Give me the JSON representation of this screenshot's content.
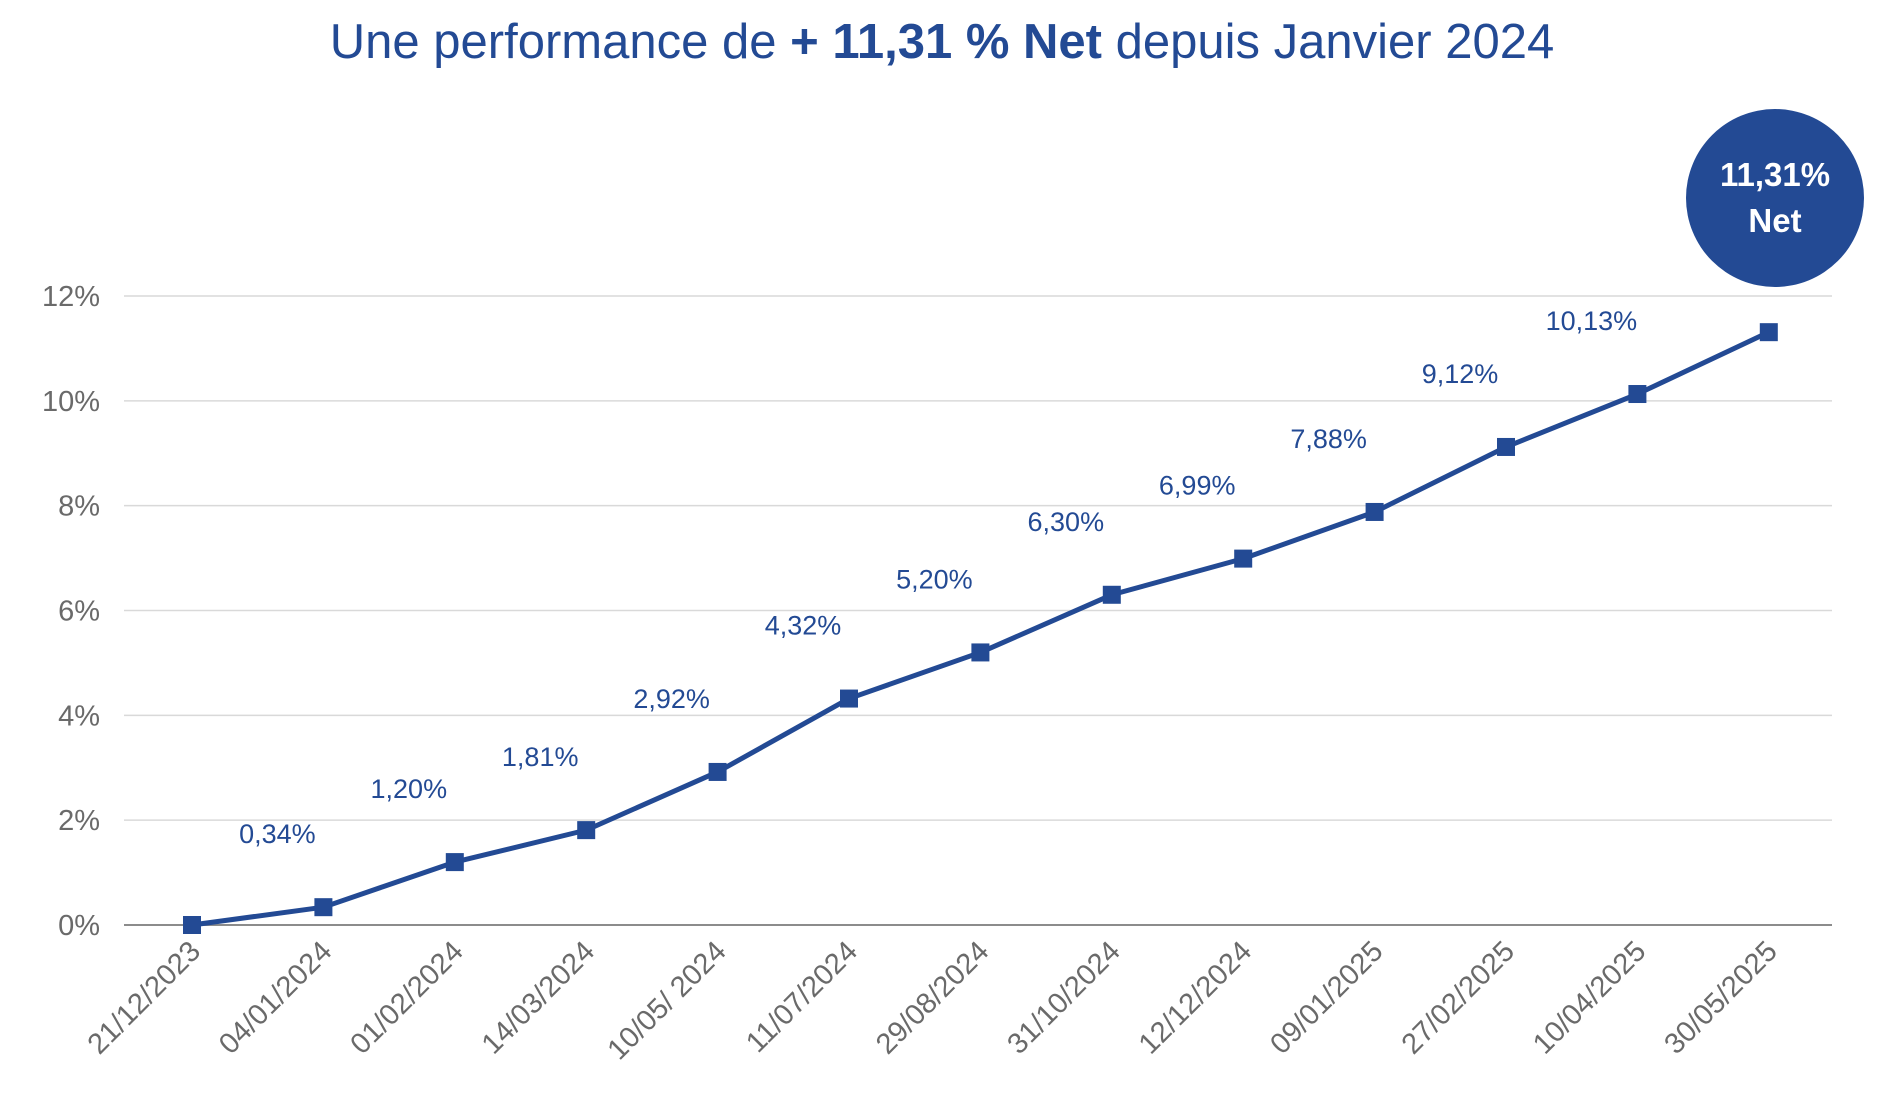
{
  "title": {
    "prefix": "Une performance de ",
    "highlight": "+ 11,31 % Net",
    "suffix": " depuis Janvier 2024"
  },
  "badge": {
    "line1": "11,31%",
    "line2": "Net"
  },
  "colors": {
    "series": "#234a94",
    "grid": "#d9d9d9",
    "axis": "#8c8c8c",
    "tick_text": "#6a6a6a"
  },
  "chart_data": {
    "type": "line",
    "title": "Une performance de + 11,31 % Net depuis Janvier 2024",
    "xlabel": "",
    "ylabel": "",
    "ylim": [
      0,
      12
    ],
    "grid": true,
    "y_ticks": [
      {
        "value": 0,
        "label": "0%"
      },
      {
        "value": 2,
        "label": "2%"
      },
      {
        "value": 4,
        "label": "4%"
      },
      {
        "value": 6,
        "label": "6%"
      },
      {
        "value": 8,
        "label": "8%"
      },
      {
        "value": 10,
        "label": "10%"
      },
      {
        "value": 12,
        "label": "12%"
      }
    ],
    "categories": [
      "21/12/2023",
      "04/01/2024",
      "01/02/2024",
      "14/03/2024",
      "10/05/ 2024",
      "11/07/2024",
      "29/08/2024",
      "31/10/2024",
      "12/12/2024",
      "09/01/2025",
      "27/02/2025",
      "10/04/2025",
      "30/05/2025"
    ],
    "values": [
      0,
      0.34,
      1.2,
      1.81,
      2.92,
      4.32,
      5.2,
      6.3,
      6.99,
      7.88,
      9.12,
      10.13,
      11.31
    ],
    "data_labels": [
      "",
      "0,34%",
      "1,20%",
      "1,81%",
      "2,92%",
      "4,32%",
      "5,20%",
      "6,30%",
      "6,99%",
      "7,88%",
      "9,12%",
      "10,13%",
      ""
    ]
  }
}
